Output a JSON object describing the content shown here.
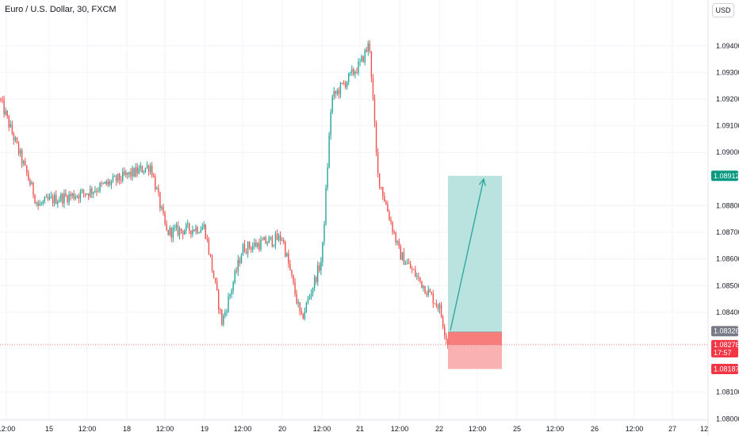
{
  "header": {
    "symbol_title": "Euro / U.S. Dollar, 30, FXCM",
    "currency_label": "USD"
  },
  "colors": {
    "up": "#26a69a",
    "down": "#ef5350",
    "target_zone": "#b2dfdb",
    "stop_zone": "#f9a3a3",
    "entry_stop_band": "#f77c7c",
    "arrow": "#26a69a",
    "last_price_line": "#ef5350",
    "grid": "#f0f3fa",
    "entry_badge": "#787b86",
    "target_badge": "#089981",
    "stop_badge": "#f23645",
    "current_badge": "#f23645"
  },
  "chart_data": {
    "type": "candlestick",
    "symbol": "Euro / U.S. Dollar",
    "interval": "30",
    "source": "FXCM",
    "currency": "USD",
    "y_axis": {
      "ticks": [
        1.094,
        1.093,
        1.092,
        1.091,
        1.09,
        1.088,
        1.087,
        1.086,
        1.085,
        1.084,
        1.081,
        1.08
      ],
      "tick_labels": [
        "1.09400",
        "1.09300",
        "1.09200",
        "1.09100",
        "1.09000",
        "1.08800",
        "1.08700",
        "1.08600",
        "1.08500",
        "1.08400",
        "1.08100",
        "1.08000"
      ],
      "range": [
        1.07995,
        1.09435
      ]
    },
    "x_axis": {
      "labels": [
        "12:00",
        "15",
        "12:00",
        "18",
        "12:00",
        "19",
        "12:00",
        "20",
        "12:00",
        "21",
        "12:00",
        "22",
        "12:00",
        "25",
        "12:00",
        "26",
        "12:00",
        "27",
        "12"
      ]
    },
    "candle_close_anchors": [
      {
        "x_label": "start",
        "close": 1.092
      },
      {
        "x_label": "before 15",
        "close": 1.088
      },
      {
        "x_label": "15",
        "close": 1.0882
      },
      {
        "x_label": "15 12:00",
        "close": 1.0885
      },
      {
        "x_label": "18",
        "close": 1.0895
      },
      {
        "x_label": "18 12:00",
        "close": 1.087
      },
      {
        "x_label": "19",
        "close": 1.0872
      },
      {
        "x_label": "19 low",
        "close": 1.0836
      },
      {
        "x_label": "19 12:00",
        "close": 1.0864
      },
      {
        "x_label": "20",
        "close": 1.0868
      },
      {
        "x_label": "20 low",
        "close": 1.0837
      },
      {
        "x_label": "20 12:00",
        "close": 1.086
      },
      {
        "x_label": "20 rally",
        "close": 1.092
      },
      {
        "x_label": "21",
        "close": 1.0933
      },
      {
        "x_label": "21 peak",
        "close": 1.0941
      },
      {
        "x_label": "21 drop",
        "close": 1.0892
      },
      {
        "x_label": "21 12:00",
        "close": 1.0862
      },
      {
        "x_label": "22",
        "close": 1.0842
      },
      {
        "x_label": "22 last",
        "close": 1.08278
      }
    ],
    "position": {
      "type": "long",
      "entry": 1.08326,
      "target": 1.08912,
      "stop": 1.08187
    },
    "price_labels": {
      "entry": "1.08326",
      "target": "1.08912",
      "stop": "1.08187",
      "current": "1.08278",
      "countdown": "17:57"
    }
  }
}
